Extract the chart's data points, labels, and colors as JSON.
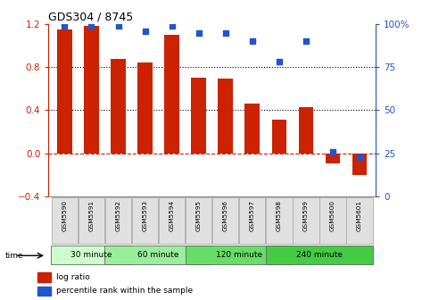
{
  "title": "GDS304 / 8745",
  "samples": [
    "GSM5590",
    "GSM5591",
    "GSM5592",
    "GSM5593",
    "GSM5594",
    "GSM5595",
    "GSM5596",
    "GSM5597",
    "GSM5598",
    "GSM5599",
    "GSM5600",
    "GSM5601"
  ],
  "log_ratio": [
    1.15,
    1.18,
    0.88,
    0.84,
    1.1,
    0.7,
    0.69,
    0.46,
    0.31,
    0.43,
    -0.09,
    -0.2
  ],
  "percentile": [
    99,
    99,
    99,
    96,
    99,
    95,
    95,
    90,
    78,
    90,
    26,
    23
  ],
  "bar_color": "#cc2200",
  "dot_color": "#2255cc",
  "ylim_left": [
    -0.4,
    1.2
  ],
  "ylim_right": [
    0,
    100
  ],
  "yticks_left": [
    -0.4,
    0.0,
    0.4,
    0.8,
    1.2
  ],
  "yticks_right": [
    0,
    25,
    50,
    75,
    100
  ],
  "groups": [
    {
      "label": "30 minute",
      "start": 0,
      "end": 2,
      "color": "#ccffcc"
    },
    {
      "label": "60 minute",
      "start": 2,
      "end": 5,
      "color": "#99ee99"
    },
    {
      "label": "120 minute",
      "start": 5,
      "end": 8,
      "color": "#66dd66"
    },
    {
      "label": "240 minute",
      "start": 8,
      "end": 11,
      "color": "#44cc44"
    }
  ],
  "legend_log_ratio": "log ratio",
  "legend_percentile": "percentile rank within the sample",
  "xlabel_time": "time",
  "background_color": "#ffffff",
  "plot_bg": "#ffffff",
  "zero_line_color": "#cc2200",
  "bar_width": 0.55
}
